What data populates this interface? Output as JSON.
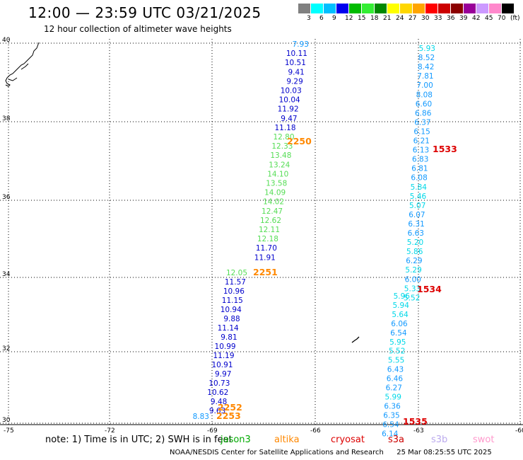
{
  "header": {
    "title": "12:00 — 23:59 UTC 03/21/2025",
    "subtitle": "12 hour collection of altimeter wave heights"
  },
  "legend": {
    "unit": "(ft)",
    "colors": [
      "#808080",
      "#00ffff",
      "#00bfff",
      "#0000ee",
      "#00bb00",
      "#33ee33",
      "#008800",
      "#ffff00",
      "#ffd700",
      "#ffa500",
      "#ff0000",
      "#cc0000",
      "#8b0000",
      "#990099",
      "#cc99ff",
      "#ff88cc",
      "#000000"
    ],
    "labels": [
      "3",
      "6",
      "9",
      "12",
      "15",
      "18",
      "21",
      "24",
      "27",
      "30",
      "33",
      "36",
      "39",
      "42",
      "45",
      "70"
    ]
  },
  "axes": {
    "lat_labels": [
      "40",
      "38",
      "36",
      "34",
      "32",
      "30"
    ],
    "lon_labels": [
      "-75",
      "-72",
      "-69",
      "-66",
      "-63",
      "-60"
    ]
  },
  "tracks": [
    {
      "time_label": "2250",
      "values": [
        "7.93",
        "10.11",
        "10.51",
        "9.41",
        "9.29",
        "10.03",
        "10.04",
        "11.92",
        "9.47",
        "11.18",
        "12.80",
        "12.33",
        "13.48",
        "13.24",
        "14.10",
        "13.58",
        "14.09",
        "14.02",
        "12.47",
        "12.62",
        "12.11",
        "12.18",
        "11.70",
        "11.91"
      ]
    },
    {
      "time_label": "2251",
      "values": [
        "12.05",
        "11.57",
        "10.96",
        "11.15",
        "10.94",
        "9.88",
        "11.14",
        "9.81",
        "10.99",
        "11.19",
        "10.91",
        "9.97",
        "10.73",
        "10.62",
        "9.48",
        "9.63"
      ]
    },
    {
      "time_label": "2252",
      "values": []
    },
    {
      "time_label": "2253",
      "values": [
        "8.83"
      ]
    },
    {
      "time_label": "1533",
      "values": [
        "5.93",
        "8.52",
        "8.42",
        "7.81",
        "7.00",
        "8.08",
        "6.60",
        "6.86",
        "6.37",
        "6.15",
        "6.21",
        "6.13",
        "6.83",
        "6.81",
        "6.08",
        "5.84",
        "5.46",
        "5.07",
        "6.07",
        "6.31",
        "6.63",
        "5.20",
        "5.86",
        "6.29",
        "5.29",
        "6.00",
        "5.33",
        "5.52"
      ]
    },
    {
      "time_label": "1534",
      "values": [
        "5.96",
        "5.94",
        "5.64",
        "6.06",
        "6.54",
        "5.95",
        "5.52",
        "5.55",
        "6.43",
        "6.46",
        "6.27",
        "5.99",
        "6.36",
        "6.35",
        "6.54",
        "6.14"
      ]
    },
    {
      "time_label": "1535",
      "values": []
    }
  ],
  "notes": {
    "note_text": "note: 1) Time is in UTC; 2) SWH is in feet",
    "satellites": [
      "jason3",
      "altika",
      "cryosat",
      "s3a",
      "s3b",
      "swot"
    ],
    "credit": "NOAA/NESDIS Center for Satellite Applications and Research",
    "timestamp": "25 Mar 08:25:55 UTC 2025"
  }
}
